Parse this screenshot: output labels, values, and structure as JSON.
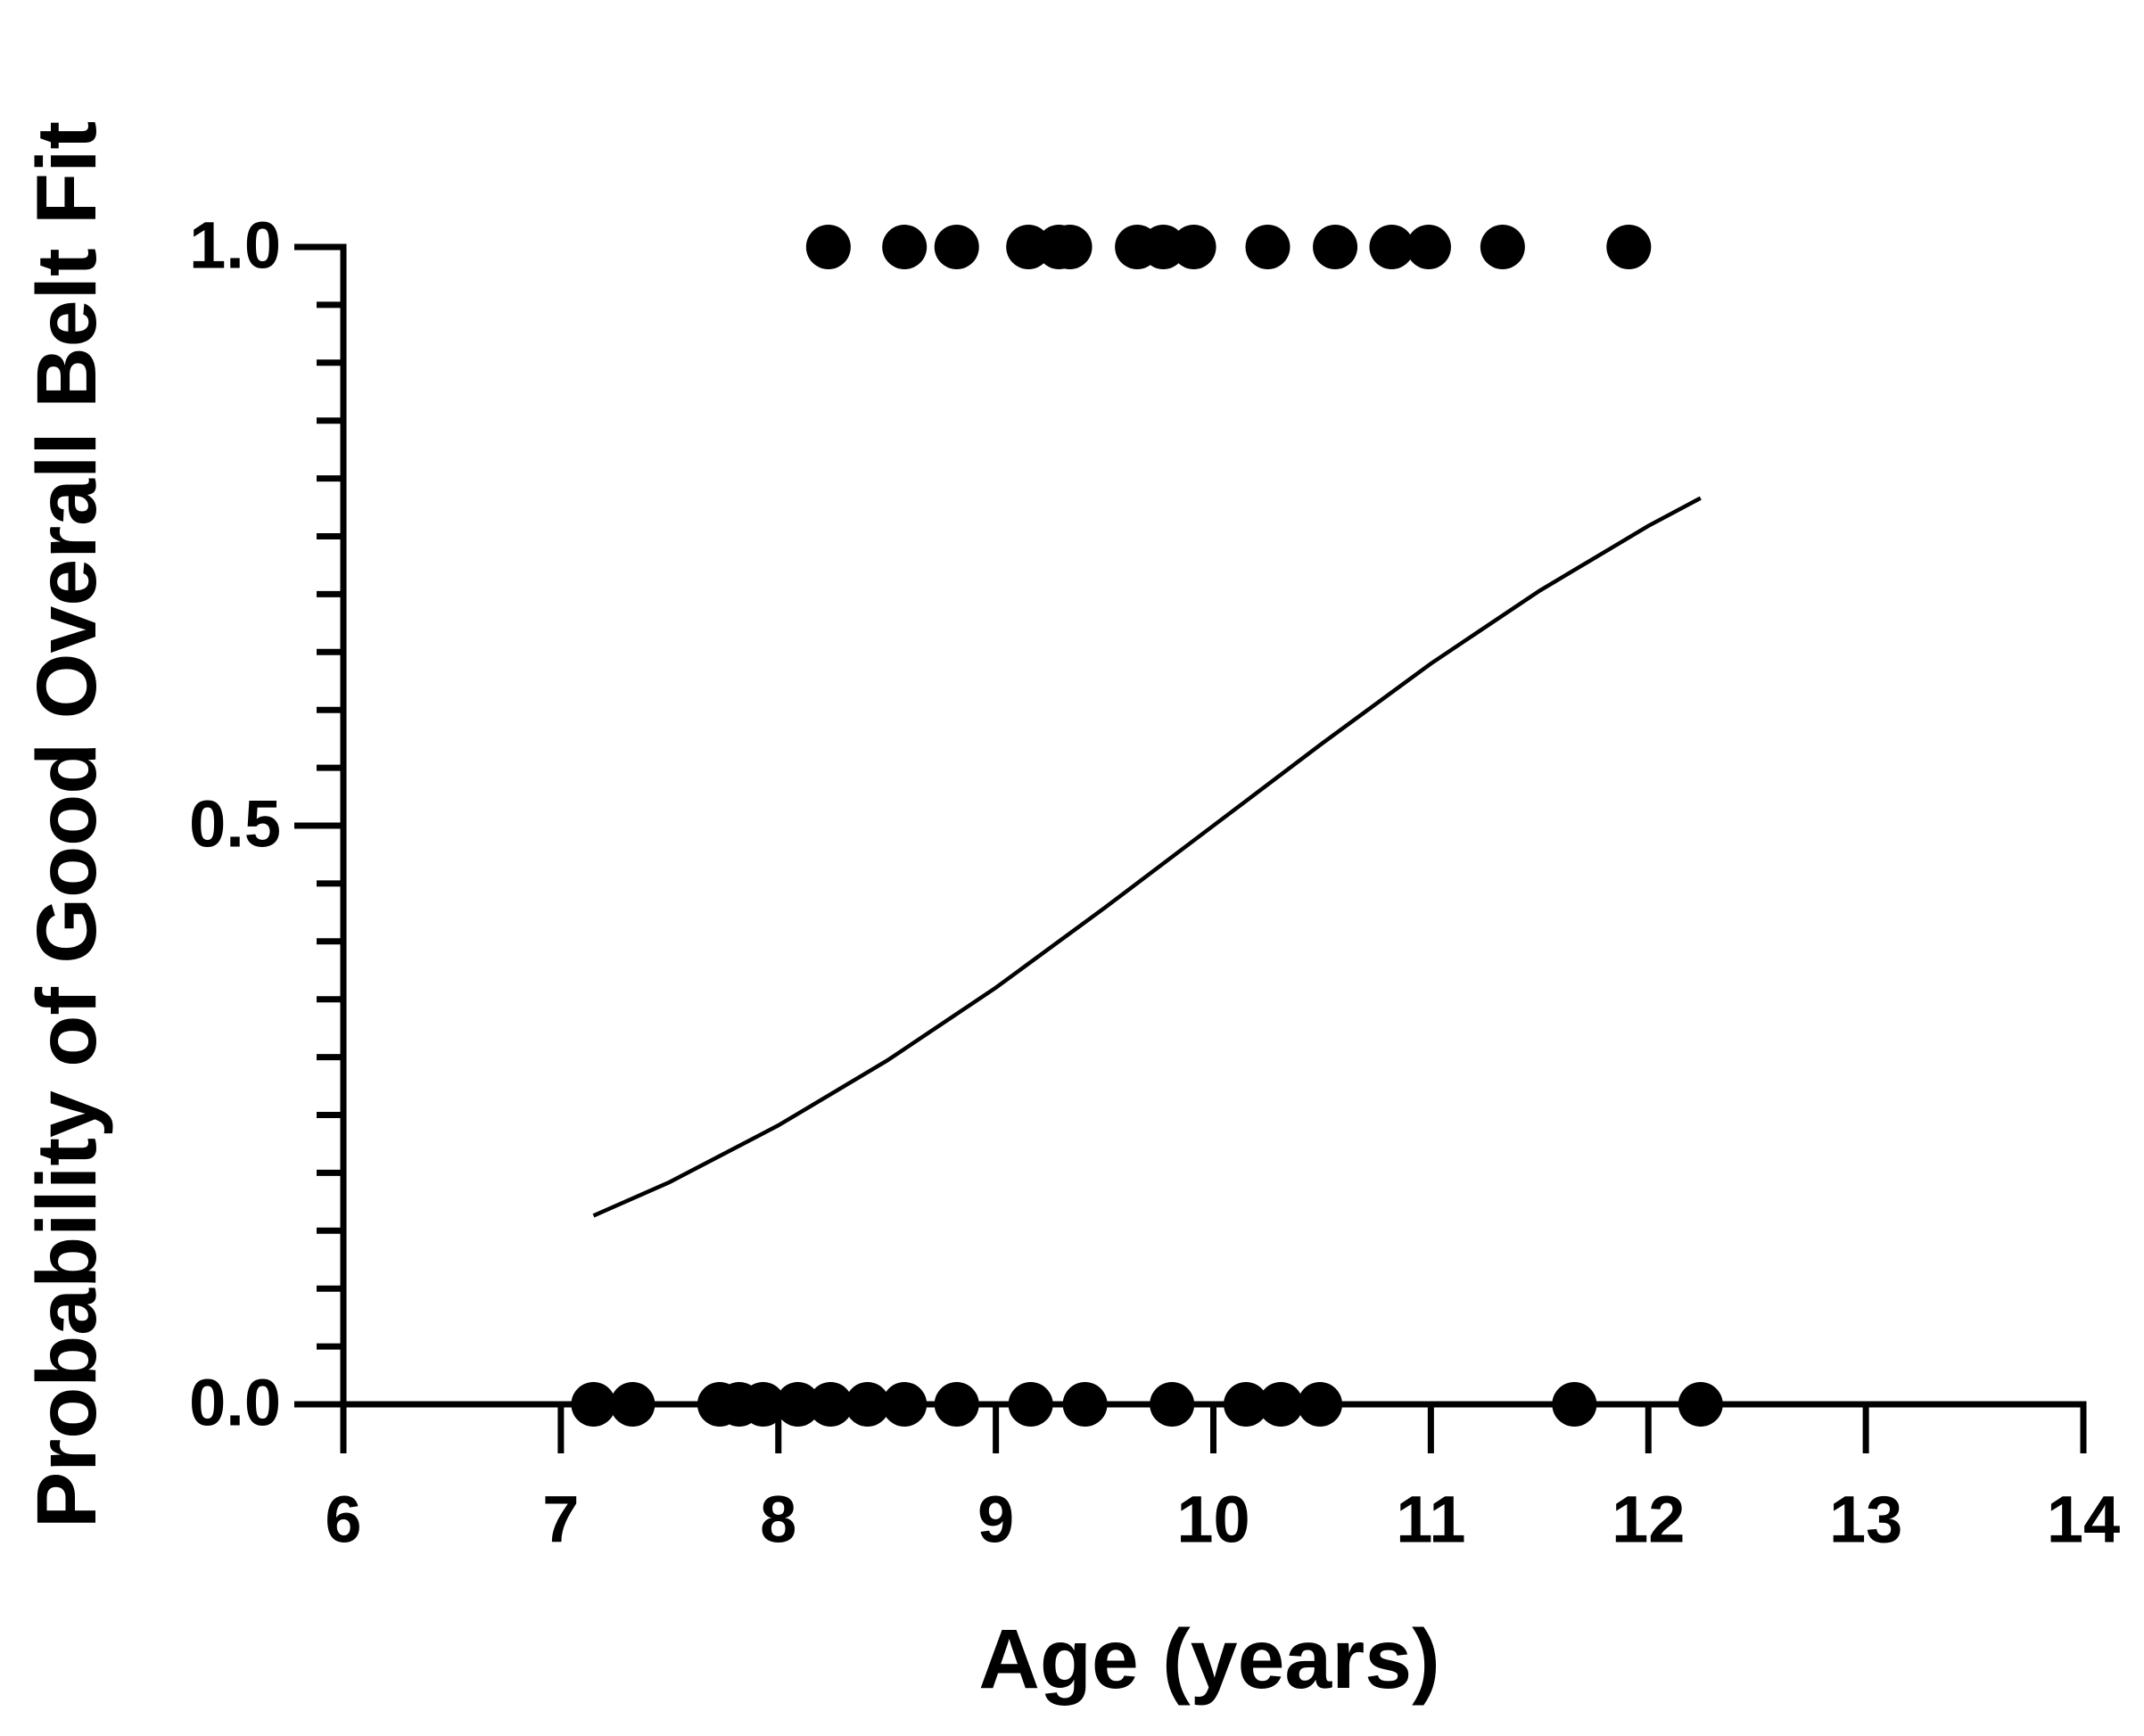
{
  "chart_data": {
    "type": "scatter",
    "x_label": "Age (years)",
    "y_label": "Probability of Good Overall Belt Fit",
    "xlim": [
      6,
      14
    ],
    "xticks": [
      6,
      7,
      8,
      9,
      10,
      11,
      12,
      13,
      14
    ],
    "ylim": [
      0,
      1
    ],
    "yticks": [
      {
        "value": 0,
        "label": "0.0"
      },
      {
        "value": 0.5,
        "label": "0.5"
      },
      {
        "value": 1,
        "label": "1.0"
      }
    ],
    "yminorticks": [
      0.05,
      0.1,
      0.15,
      0.2,
      0.25,
      0.3,
      0.35,
      0.4,
      0.45,
      0.55,
      0.6,
      0.65,
      0.7,
      0.75,
      0.8,
      0.85,
      0.9,
      0.95
    ],
    "series": [
      {
        "style": "marker",
        "color": "#000000",
        "x": [
          8.23,
          8.58,
          8.82,
          9.15,
          9.29,
          9.34,
          9.65,
          9.77,
          9.91,
          10.25,
          10.56,
          10.82,
          10.99,
          11.33,
          11.91,
          7.15,
          7.33,
          7.73,
          7.82,
          7.93,
          8.09,
          8.24,
          8.41,
          8.58,
          8.82,
          9.16,
          9.41,
          9.81,
          10.15,
          10.31,
          10.49,
          11.66,
          12.24
        ],
        "values": [
          1,
          1,
          1,
          1,
          1,
          1,
          1,
          1,
          1,
          1,
          1,
          1,
          1,
          1,
          1,
          0,
          0,
          0,
          0,
          0,
          0,
          0,
          0,
          0,
          0,
          0,
          0,
          0,
          0,
          0,
          0,
          0,
          0
        ]
      },
      {
        "style": "line",
        "color": "#000000",
        "x": [
          7.15,
          7.5,
          8,
          8.5,
          9,
          9.5,
          10,
          10.5,
          11,
          11.5,
          12,
          12.24
        ],
        "values": [
          0.163,
          0.192,
          0.241,
          0.297,
          0.36,
          0.429,
          0.5,
          0.571,
          0.64,
          0.703,
          0.759,
          0.783
        ]
      }
    ]
  }
}
